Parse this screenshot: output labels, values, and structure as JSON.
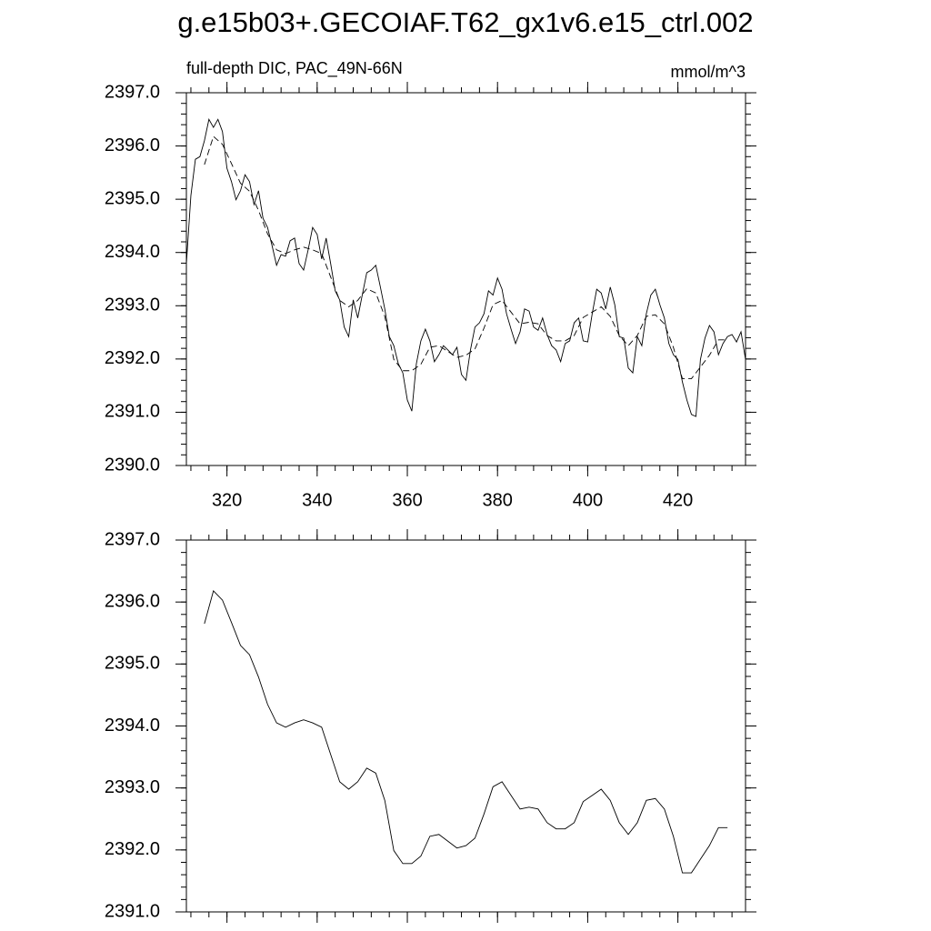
{
  "title": "g.e15b03+.GECOIAF.T62_gx1v6.e15_ctrl.002",
  "chart_data": [
    {
      "type": "line",
      "subtitle_left": "full-depth DIC, PAC_49N-66N",
      "subtitle_right": "mmol/m^3",
      "xlim": [
        311,
        435
      ],
      "xticks": [
        320,
        340,
        360,
        380,
        400,
        420
      ],
      "xtick_labels": true,
      "ylim": [
        2390,
        2397
      ],
      "yticks": [
        {
          "value": 2390,
          "label": "2390.0"
        },
        {
          "value": 2391,
          "label": "2391.0"
        },
        {
          "value": 2392,
          "label": "2392.0"
        },
        {
          "value": 2393,
          "label": "2393.0"
        },
        {
          "value": 2394,
          "label": "2394.0"
        },
        {
          "value": 2395,
          "label": "2395.0"
        },
        {
          "value": 2396,
          "label": "2396.0"
        },
        {
          "value": 2397,
          "label": "2397.0"
        }
      ],
      "series": [
        {
          "color": "#000000",
          "dash": false,
          "x": [
            311,
            312,
            313,
            314,
            315,
            316,
            317,
            318,
            319,
            320,
            321,
            322,
            323,
            324,
            325,
            326,
            327,
            328,
            329,
            330,
            331,
            332,
            333,
            334,
            335,
            336,
            337,
            338,
            339,
            340,
            341,
            342,
            343,
            344,
            345,
            346,
            347,
            348,
            349,
            350,
            351,
            352,
            353,
            354,
            355,
            356,
            357,
            358,
            359,
            360,
            361,
            362,
            363,
            364,
            365,
            366,
            367,
            368,
            369,
            370,
            371,
            372,
            373,
            374,
            375,
            376,
            377,
            378,
            379,
            380,
            381,
            382,
            383,
            384,
            385,
            386,
            387,
            388,
            389,
            390,
            391,
            392,
            393,
            394,
            395,
            396,
            397,
            398,
            399,
            400,
            401,
            402,
            403,
            404,
            405,
            406,
            407,
            408,
            409,
            410,
            411,
            412,
            413,
            414,
            415,
            416,
            417,
            418,
            419,
            420,
            421,
            422,
            423,
            424,
            425,
            426,
            427,
            428,
            429,
            430,
            431,
            432,
            433,
            434,
            435
          ],
          "values": [
            2393.79,
            2395.07,
            2395.75,
            2395.8,
            2396.1,
            2396.5,
            2396.35,
            2396.5,
            2396.27,
            2395.58,
            2395.33,
            2394.99,
            2395.16,
            2395.46,
            2395.33,
            2394.9,
            2395.16,
            2394.64,
            2394.47,
            2394.13,
            2393.76,
            2393.96,
            2393.93,
            2394.22,
            2394.27,
            2393.79,
            2393.67,
            2394.05,
            2394.47,
            2394.34,
            2393.88,
            2394.27,
            2393.79,
            2393.28,
            2393.11,
            2392.6,
            2392.42,
            2393.11,
            2392.77,
            2393.2,
            2393.62,
            2393.67,
            2393.76,
            2393.36,
            2392.94,
            2392.42,
            2392.25,
            2391.91,
            2391.74,
            2391.23,
            2391.02,
            2391.91,
            2392.34,
            2392.56,
            2392.34,
            2391.95,
            2392.08,
            2392.25,
            2392.17,
            2392.08,
            2392.22,
            2391.71,
            2391.6,
            2392.17,
            2392.6,
            2392.68,
            2392.85,
            2393.28,
            2393.2,
            2393.52,
            2393.31,
            2392.85,
            2392.56,
            2392.29,
            2392.51,
            2392.94,
            2392.9,
            2392.6,
            2392.54,
            2392.77,
            2392.46,
            2392.25,
            2392.17,
            2391.95,
            2392.29,
            2392.34,
            2392.68,
            2392.77,
            2392.34,
            2392.32,
            2392.85,
            2393.31,
            2393.24,
            2392.94,
            2393.35,
            2393.02,
            2392.42,
            2392.39,
            2391.83,
            2391.74,
            2392.42,
            2392.25,
            2392.85,
            2393.2,
            2393.31,
            2393.02,
            2392.77,
            2392.29,
            2392.08,
            2391.99,
            2391.57,
            2391.23,
            2390.96,
            2390.92,
            2391.99,
            2392.39,
            2392.63,
            2392.51,
            2392.08,
            2392.29,
            2392.42,
            2392.46,
            2392.32,
            2392.51,
            2391.99
          ]
        },
        {
          "color": "#000000",
          "dash": true,
          "x": [
            315,
            317,
            319,
            321,
            323,
            325,
            327,
            329,
            331,
            333,
            335,
            337,
            339,
            341,
            343,
            345,
            347,
            349,
            351,
            353,
            355,
            357,
            359,
            361,
            363,
            365,
            367,
            369,
            371,
            373,
            375,
            377,
            379,
            381,
            383,
            385,
            387,
            389,
            391,
            393,
            395,
            397,
            399,
            401,
            403,
            405,
            407,
            409,
            411,
            413,
            415,
            417,
            419,
            421,
            423,
            425,
            427,
            429,
            431
          ],
          "values": [
            2395.65,
            2396.18,
            2396.03,
            2395.67,
            2395.3,
            2395.15,
            2394.79,
            2394.35,
            2394.05,
            2393.98,
            2394.05,
            2394.1,
            2394.05,
            2393.98,
            2393.54,
            2393.1,
            2392.98,
            2393.1,
            2393.32,
            2393.24,
            2392.8,
            2391.99,
            2391.78,
            2391.78,
            2391.9,
            2392.22,
            2392.25,
            2392.14,
            2392.03,
            2392.07,
            2392.19,
            2392.58,
            2393.02,
            2393.1,
            2392.88,
            2392.66,
            2392.69,
            2392.66,
            2392.44,
            2392.34,
            2392.34,
            2392.44,
            2392.78,
            2392.88,
            2392.98,
            2392.8,
            2392.44,
            2392.25,
            2392.44,
            2392.8,
            2392.83,
            2392.66,
            2392.22,
            2391.63,
            2391.63,
            2391.85,
            2392.07,
            2392.36,
            2392.36
          ]
        }
      ]
    },
    {
      "type": "line",
      "xlim": [
        311,
        435
      ],
      "xticks": [
        320,
        340,
        360,
        380,
        400,
        420
      ],
      "xtick_labels": false,
      "ylim": [
        2391,
        2397
      ],
      "yticks": [
        {
          "value": 2391,
          "label": "2391.0"
        },
        {
          "value": 2392,
          "label": "2392.0"
        },
        {
          "value": 2393,
          "label": "2393.0"
        },
        {
          "value": 2394,
          "label": "2394.0"
        },
        {
          "value": 2395,
          "label": "2395.0"
        },
        {
          "value": 2396,
          "label": "2396.0"
        },
        {
          "value": 2397,
          "label": "2397.0"
        }
      ],
      "series": [
        {
          "color": "#000000",
          "dash": false,
          "x": [
            315,
            317,
            319,
            321,
            323,
            325,
            327,
            329,
            331,
            333,
            335,
            337,
            339,
            341,
            343,
            345,
            347,
            349,
            351,
            353,
            355,
            357,
            359,
            361,
            363,
            365,
            367,
            369,
            371,
            373,
            375,
            377,
            379,
            381,
            383,
            385,
            387,
            389,
            391,
            393,
            395,
            397,
            399,
            401,
            403,
            405,
            407,
            409,
            411,
            413,
            415,
            417,
            419,
            421,
            423,
            425,
            427,
            429,
            431
          ],
          "values": [
            2395.65,
            2396.18,
            2396.03,
            2395.67,
            2395.3,
            2395.15,
            2394.79,
            2394.35,
            2394.05,
            2393.98,
            2394.05,
            2394.1,
            2394.05,
            2393.98,
            2393.54,
            2393.1,
            2392.98,
            2393.1,
            2393.32,
            2393.24,
            2392.8,
            2391.99,
            2391.78,
            2391.78,
            2391.9,
            2392.22,
            2392.25,
            2392.14,
            2392.03,
            2392.07,
            2392.19,
            2392.58,
            2393.02,
            2393.1,
            2392.88,
            2392.66,
            2392.69,
            2392.66,
            2392.44,
            2392.34,
            2392.34,
            2392.44,
            2392.78,
            2392.88,
            2392.98,
            2392.8,
            2392.44,
            2392.25,
            2392.44,
            2392.8,
            2392.83,
            2392.66,
            2392.22,
            2391.63,
            2391.63,
            2391.85,
            2392.07,
            2392.36,
            2392.36
          ]
        }
      ]
    }
  ]
}
